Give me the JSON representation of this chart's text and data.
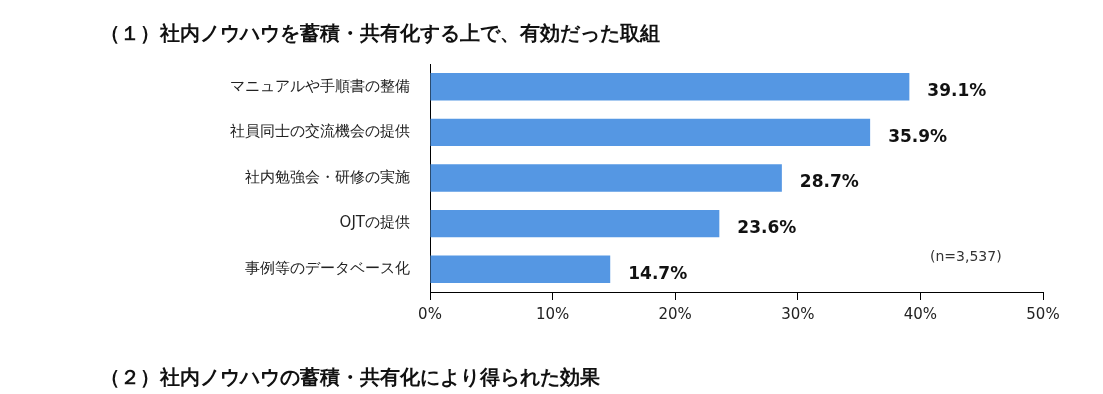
{
  "chart_data": {
    "type": "bar",
    "orientation": "horizontal",
    "title": "（１）社内ノウハウを蓄積・共有化する上で、有効だった取組",
    "categories": [
      "マニュアルや手順書の整備",
      "社員同士の交流機会の提供",
      "社内勉強会・研修の実施",
      "OJTの提供",
      "事例等のデータベース化"
    ],
    "values": [
      39.1,
      35.9,
      28.7,
      23.6,
      14.7
    ],
    "value_labels": [
      "39.1%",
      "35.9%",
      "28.7%",
      "23.6%",
      "14.7%"
    ],
    "color": "#5597e3",
    "xlim": [
      0,
      50
    ],
    "xticks": [
      {
        "value": 0,
        "label": "0%"
      },
      {
        "value": 10,
        "label": "10%"
      },
      {
        "value": 20,
        "label": "20%"
      },
      {
        "value": 30,
        "label": "30%"
      },
      {
        "value": 40,
        "label": "40%"
      },
      {
        "value": 50,
        "label": "50%"
      }
    ],
    "grid": false,
    "legend": false,
    "annotations": [
      "(n=3,537)",
      "（２）社内ノウハウの蓄積・共有化により得られた効果"
    ]
  }
}
